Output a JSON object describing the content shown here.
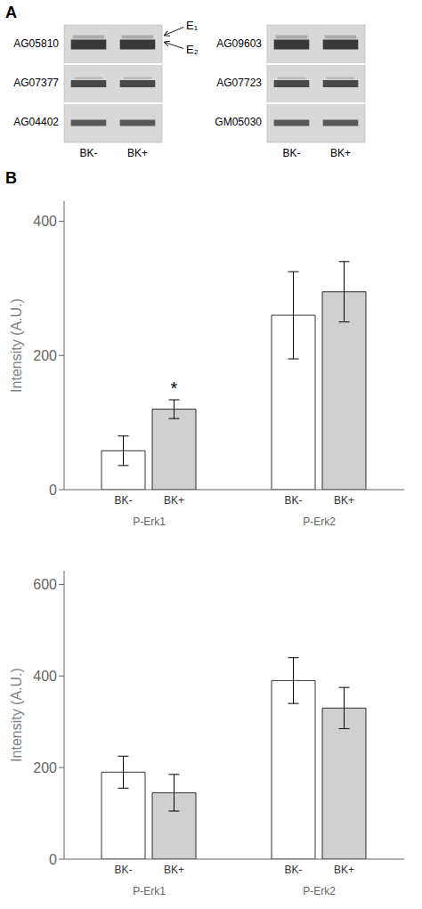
{
  "chart_data": [
    {
      "type": "blot",
      "title": "A",
      "annotations": [
        "E₁",
        "E₂"
      ],
      "panels": [
        {
          "rows": [
            "AG05810",
            "AG07377",
            "AG04402"
          ],
          "categories": [
            "BK-",
            "BK+"
          ]
        },
        {
          "rows": [
            "AG09603",
            "AG07723",
            "GM05030"
          ],
          "categories": [
            "BK-",
            "BK+"
          ]
        }
      ]
    },
    {
      "type": "bar",
      "title": "B",
      "categories": [
        "P-Erk1",
        "P-Erk2"
      ],
      "series": [
        {
          "name": "BK-",
          "color": "white",
          "values": [
            58,
            260
          ],
          "errors": [
            22,
            65
          ]
        },
        {
          "name": "BK+",
          "color": "#d0d0d0",
          "values": [
            120,
            295
          ],
          "errors": [
            14,
            45
          ]
        }
      ],
      "ylabel": "Intensity (A.U.)",
      "ylim": [
        0,
        430
      ],
      "yticks": [
        0,
        200,
        400
      ],
      "annotations": [
        {
          "text": "*",
          "category": "P-Erk1",
          "series": "BK+"
        }
      ]
    },
    {
      "type": "bar",
      "categories": [
        "P-Erk1",
        "P-Erk2"
      ],
      "series": [
        {
          "name": "BK-",
          "color": "white",
          "values": [
            190,
            390
          ],
          "errors": [
            35,
            50
          ]
        },
        {
          "name": "BK+",
          "color": "#d0d0d0",
          "values": [
            145,
            330
          ],
          "errors": [
            40,
            45
          ]
        }
      ],
      "ylabel": "Intensity (A.U.)",
      "ylim": [
        0,
        630
      ],
      "yticks": [
        0,
        200,
        400,
        600
      ]
    }
  ]
}
